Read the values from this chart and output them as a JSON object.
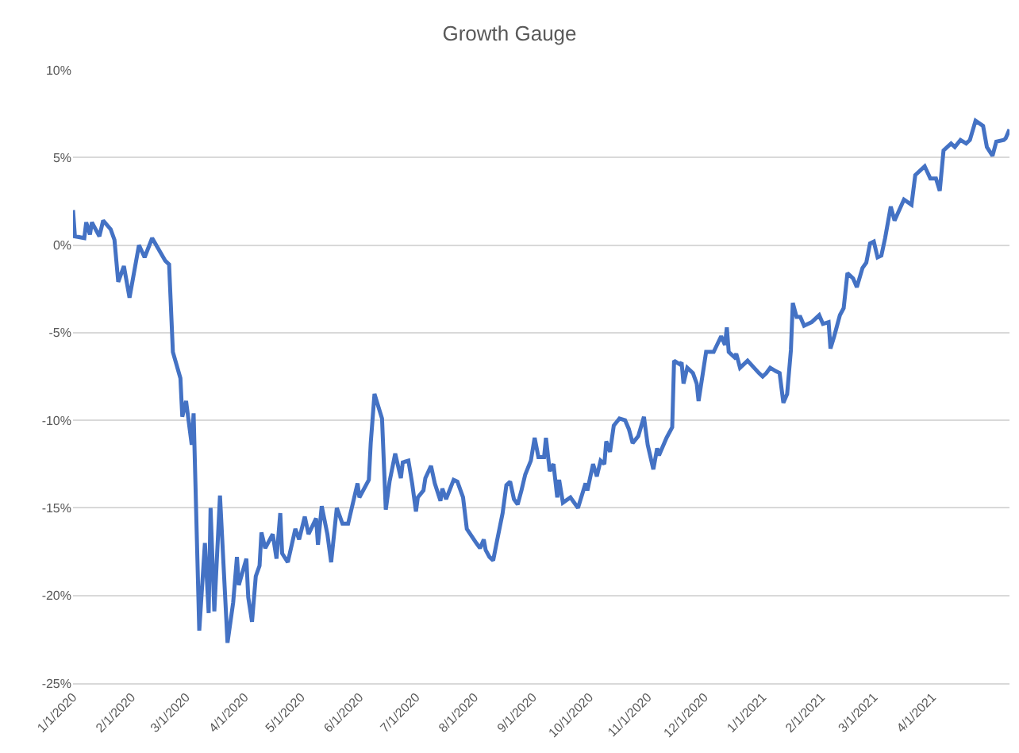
{
  "chart_data": {
    "type": "line",
    "title": "Growth Gauge",
    "xlim": [
      "2020-01-01",
      "2021-05-12"
    ],
    "xticks": [
      {
        "value": "2020-01-01",
        "label": "1/1/2020"
      },
      {
        "value": "2020-02-01",
        "label": "2/1/2020"
      },
      {
        "value": "2020-03-01",
        "label": "3/1/2020"
      },
      {
        "value": "2020-04-01",
        "label": "4/1/2020"
      },
      {
        "value": "2020-05-01",
        "label": "5/1/2020"
      },
      {
        "value": "2020-06-01",
        "label": "6/1/2020"
      },
      {
        "value": "2020-07-01",
        "label": "7/1/2020"
      },
      {
        "value": "2020-08-01",
        "label": "8/1/2020"
      },
      {
        "value": "2020-09-01",
        "label": "9/1/2020"
      },
      {
        "value": "2020-10-01",
        "label": "10/1/2020"
      },
      {
        "value": "2020-11-01",
        "label": "11/1/2020"
      },
      {
        "value": "2020-12-01",
        "label": "12/1/2020"
      },
      {
        "value": "2021-01-01",
        "label": "1/1/2021"
      },
      {
        "value": "2021-02-01",
        "label": "2/1/2021"
      },
      {
        "value": "2021-03-01",
        "label": "3/1/2021"
      },
      {
        "value": "2021-04-01",
        "label": "4/1/2021"
      }
    ],
    "ylim": [
      -25,
      10
    ],
    "yticks": [
      {
        "value": -25,
        "label": "-25%"
      },
      {
        "value": -20,
        "label": "-20%"
      },
      {
        "value": -15,
        "label": "-15%"
      },
      {
        "value": -10,
        "label": "-10%"
      },
      {
        "value": -5,
        "label": "-5%"
      },
      {
        "value": 0,
        "label": "0%"
      },
      {
        "value": 5,
        "label": "5%"
      },
      {
        "value": 10,
        "label": "10%"
      }
    ],
    "grid": "y",
    "marker": "none",
    "line_style": "solid",
    "x": [
      "2020-01-01",
      "2020-01-02",
      "2020-01-07",
      "2020-01-08",
      "2020-01-10",
      "2020-01-11",
      "2020-01-15",
      "2020-01-17",
      "2020-01-21",
      "2020-01-23",
      "2020-01-25",
      "2020-01-28",
      "2020-01-31",
      "2020-02-05",
      "2020-02-08",
      "2020-02-12",
      "2020-02-19",
      "2020-02-21",
      "2020-02-23",
      "2020-02-27",
      "2020-02-28",
      "2020-03-01",
      "2020-03-04",
      "2020-03-05",
      "2020-03-08",
      "2020-03-11",
      "2020-03-13",
      "2020-03-14",
      "2020-03-16",
      "2020-03-19",
      "2020-03-23",
      "2020-03-26",
      "2020-03-28",
      "2020-03-29",
      "2020-04-02",
      "2020-04-03",
      "2020-04-05",
      "2020-04-07",
      "2020-04-09",
      "2020-04-10",
      "2020-04-12",
      "2020-04-16",
      "2020-04-18",
      "2020-04-20",
      "2020-04-21",
      "2020-04-24",
      "2020-04-28",
      "2020-04-30",
      "2020-05-03",
      "2020-05-05",
      "2020-05-09",
      "2020-05-10",
      "2020-05-12",
      "2020-05-15",
      "2020-05-17",
      "2020-05-20",
      "2020-05-23",
      "2020-05-26",
      "2020-05-31",
      "2020-06-01",
      "2020-06-06",
      "2020-06-07",
      "2020-06-09",
      "2020-06-13",
      "2020-06-15",
      "2020-06-17",
      "2020-06-20",
      "2020-06-23",
      "2020-06-24",
      "2020-06-27",
      "2020-06-29",
      "2020-07-01",
      "2020-07-02",
      "2020-07-05",
      "2020-07-06",
      "2020-07-09",
      "2020-07-11",
      "2020-07-14",
      "2020-07-15",
      "2020-07-17",
      "2020-07-21",
      "2020-07-23",
      "2020-07-26",
      "2020-07-28",
      "2020-08-02",
      "2020-08-04",
      "2020-08-06",
      "2020-08-07",
      "2020-08-09",
      "2020-08-11",
      "2020-08-13",
      "2020-08-16",
      "2020-08-18",
      "2020-08-20",
      "2020-08-22",
      "2020-08-24",
      "2020-08-26",
      "2020-08-28",
      "2020-08-31",
      "2020-09-02",
      "2020-09-04",
      "2020-09-07",
      "2020-09-08",
      "2020-09-10",
      "2020-09-12",
      "2020-09-14",
      "2020-09-15",
      "2020-09-17",
      "2020-09-21",
      "2020-09-25",
      "2020-09-29",
      "2020-09-30",
      "2020-10-03",
      "2020-10-05",
      "2020-10-07",
      "2020-10-09",
      "2020-10-10",
      "2020-10-12",
      "2020-10-14",
      "2020-10-17",
      "2020-10-20",
      "2020-10-22",
      "2020-10-24",
      "2020-10-27",
      "2020-10-30",
      "2020-11-01",
      "2020-11-04",
      "2020-11-06",
      "2020-11-07",
      "2020-11-11",
      "2020-11-14",
      "2020-11-15",
      "2020-11-18",
      "2020-11-19",
      "2020-11-20",
      "2020-11-22",
      "2020-11-25",
      "2020-11-27",
      "2020-11-28",
      "2020-12-02",
      "2020-12-06",
      "2020-12-10",
      "2020-12-12",
      "2020-12-13",
      "2020-12-14",
      "2020-12-17",
      "2020-12-18",
      "2020-12-20",
      "2020-12-24",
      "2020-12-30",
      "2021-01-01",
      "2021-01-03",
      "2021-01-05",
      "2021-01-08",
      "2021-01-10",
      "2021-01-12",
      "2021-01-14",
      "2021-01-16",
      "2021-01-17",
      "2021-01-19",
      "2021-01-21",
      "2021-01-23",
      "2021-01-27",
      "2021-01-31",
      "2021-02-02",
      "2021-02-05",
      "2021-02-06",
      "2021-02-08",
      "2021-02-11",
      "2021-02-13",
      "2021-02-15",
      "2021-02-18",
      "2021-02-20",
      "2021-02-23",
      "2021-02-25",
      "2021-02-27",
      "2021-03-01",
      "2021-03-03",
      "2021-03-05",
      "2021-03-07",
      "2021-03-10",
      "2021-03-12",
      "2021-03-17",
      "2021-03-21",
      "2021-03-23",
      "2021-03-28",
      "2021-03-31",
      "2021-04-03",
      "2021-04-05",
      "2021-04-07",
      "2021-04-11",
      "2021-04-13",
      "2021-04-16",
      "2021-04-19",
      "2021-04-21",
      "2021-04-24",
      "2021-04-28",
      "2021-04-30",
      "2021-05-03",
      "2021-05-05",
      "2021-05-09",
      "2021-05-10",
      "2021-05-12"
    ],
    "series": [
      {
        "color": "#4472c4",
        "values": [
          2.0,
          0.5,
          0.4,
          1.3,
          0.6,
          1.3,
          0.5,
          1.4,
          0.9,
          0.3,
          -2.1,
          -1.2,
          -3.0,
          0.0,
          -0.7,
          0.4,
          -0.9,
          -1.1,
          -6.1,
          -7.6,
          -9.8,
          -8.9,
          -11.4,
          -9.6,
          -22.0,
          -17.0,
          -21.0,
          -15.0,
          -20.9,
          -14.3,
          -22.7,
          -20.4,
          -17.8,
          -19.4,
          -17.9,
          -20.1,
          -21.5,
          -18.9,
          -18.3,
          -16.4,
          -17.3,
          -16.5,
          -17.9,
          -15.3,
          -17.6,
          -18.1,
          -16.2,
          -16.8,
          -15.5,
          -16.5,
          -15.6,
          -17.1,
          -14.9,
          -16.5,
          -18.1,
          -15.0,
          -15.9,
          -15.9,
          -13.6,
          -14.4,
          -13.4,
          -11.3,
          -8.5,
          -9.9,
          -15.1,
          -13.5,
          -11.9,
          -13.3,
          -12.4,
          -12.3,
          -13.6,
          -15.2,
          -14.4,
          -14.0,
          -13.3,
          -12.6,
          -13.6,
          -14.6,
          -13.9,
          -14.5,
          -13.4,
          -13.5,
          -14.4,
          -16.2,
          -17.0,
          -17.3,
          -16.8,
          -17.4,
          -17.8,
          -18.0,
          -16.9,
          -15.3,
          -13.7,
          -13.5,
          -14.5,
          -14.8,
          -14.0,
          -13.1,
          -12.3,
          -11.0,
          -12.1,
          -12.1,
          -11.0,
          -12.9,
          -12.5,
          -14.4,
          -13.4,
          -14.7,
          -14.4,
          -15.0,
          -13.6,
          -14.0,
          -12.5,
          -13.2,
          -12.3,
          -12.5,
          -11.2,
          -11.8,
          -10.3,
          -9.9,
          -10.0,
          -10.5,
          -11.3,
          -10.9,
          -9.8,
          -11.4,
          -12.8,
          -11.6,
          -12.0,
          -11.0,
          -10.4,
          -6.6,
          -6.8,
          -6.7,
          -7.9,
          -7.0,
          -7.3,
          -7.9,
          -8.9,
          -6.1,
          -6.1,
          -5.2,
          -5.7,
          -4.7,
          -6.1,
          -6.4,
          -6.2,
          -7.0,
          -6.6,
          -7.3,
          -7.5,
          -7.3,
          -7.0,
          -7.2,
          -7.3,
          -9.0,
          -8.5,
          -6.0,
          -3.3,
          -4.1,
          -4.1,
          -4.6,
          -4.4,
          -4.0,
          -4.5,
          -4.4,
          -5.9,
          -5.2,
          -4.0,
          -3.6,
          -1.6,
          -1.9,
          -2.4,
          -1.3,
          -1.0,
          0.1,
          0.2,
          -0.7,
          -0.6,
          0.4,
          2.2,
          1.4,
          2.6,
          2.3,
          4.0,
          4.5,
          3.8,
          3.8,
          3.1,
          5.4,
          5.8,
          5.6,
          6.0,
          5.8,
          6.0,
          7.1,
          6.8,
          5.6,
          5.1,
          5.9,
          6.0,
          6.1,
          6.6
        ]
      }
    ]
  }
}
